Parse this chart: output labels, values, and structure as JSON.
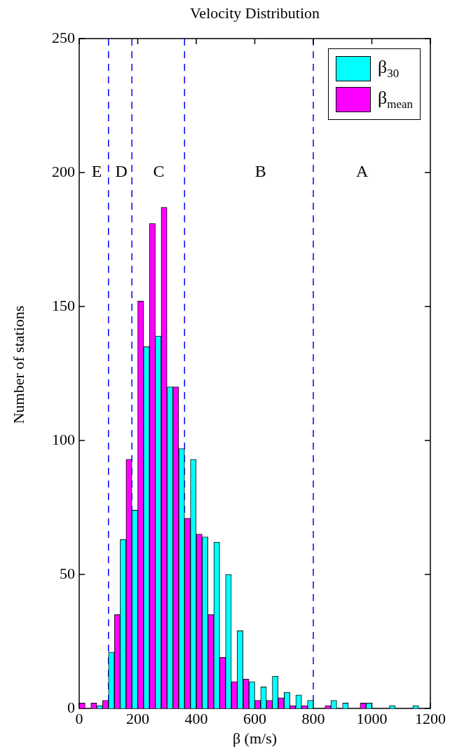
{
  "chart_data": {
    "type": "bar",
    "title": "Velocity Distribution",
    "xlabel": "β (m/s)",
    "ylabel": "Number of stations",
    "x": [
      0,
      40,
      80,
      120,
      160,
      200,
      240,
      280,
      320,
      360,
      400,
      440,
      480,
      520,
      560,
      600,
      640,
      680,
      720,
      760,
      800,
      840,
      880,
      920,
      960,
      1000,
      1040,
      1080,
      1120,
      1160
    ],
    "series": [
      {
        "name": "β$_{30}$",
        "color": "#00ffff",
        "values": [
          0,
          0,
          1,
          21,
          63,
          74,
          135,
          139,
          120,
          97,
          93,
          64,
          62,
          50,
          29,
          10,
          8,
          12,
          6,
          5,
          3,
          0,
          3,
          2,
          0,
          2,
          0,
          1,
          0,
          1
        ]
      },
      {
        "name": "β$_{mean}$",
        "color": "#ff00ff",
        "values": [
          2,
          2,
          3,
          35,
          93,
          152,
          181,
          187,
          120,
          71,
          65,
          35,
          19,
          10,
          11,
          3,
          3,
          4,
          1,
          1,
          0,
          1,
          0,
          0,
          2,
          0,
          0,
          0,
          0,
          0
        ]
      }
    ],
    "xlim": [
      0,
      1200
    ],
    "xticks": [
      0,
      200,
      400,
      600,
      800,
      1000,
      1200
    ],
    "ylim": [
      0,
      250
    ],
    "yticks": [
      0,
      50,
      100,
      150,
      200,
      250
    ],
    "ref_lines": [
      {
        "axis": "x",
        "value": 100,
        "color": "#0000ff",
        "line_style": "dashed"
      },
      {
        "axis": "x",
        "value": 180,
        "color": "#0000ff",
        "line_style": "dashed"
      },
      {
        "axis": "x",
        "value": 360,
        "color": "#0000ff",
        "line_style": "dashed"
      },
      {
        "axis": "x",
        "value": 800,
        "color": "#0000ff",
        "line_style": "dashed"
      }
    ],
    "annotations": [
      {
        "text": "E",
        "x": 60,
        "y": 200
      },
      {
        "text": "D",
        "x": 144,
        "y": 200
      },
      {
        "text": "C",
        "x": 272,
        "y": 200
      },
      {
        "text": "B",
        "x": 620,
        "y": 200
      },
      {
        "text": "A",
        "x": 967,
        "y": 200
      }
    ],
    "grid": false,
    "legend": "top right"
  }
}
